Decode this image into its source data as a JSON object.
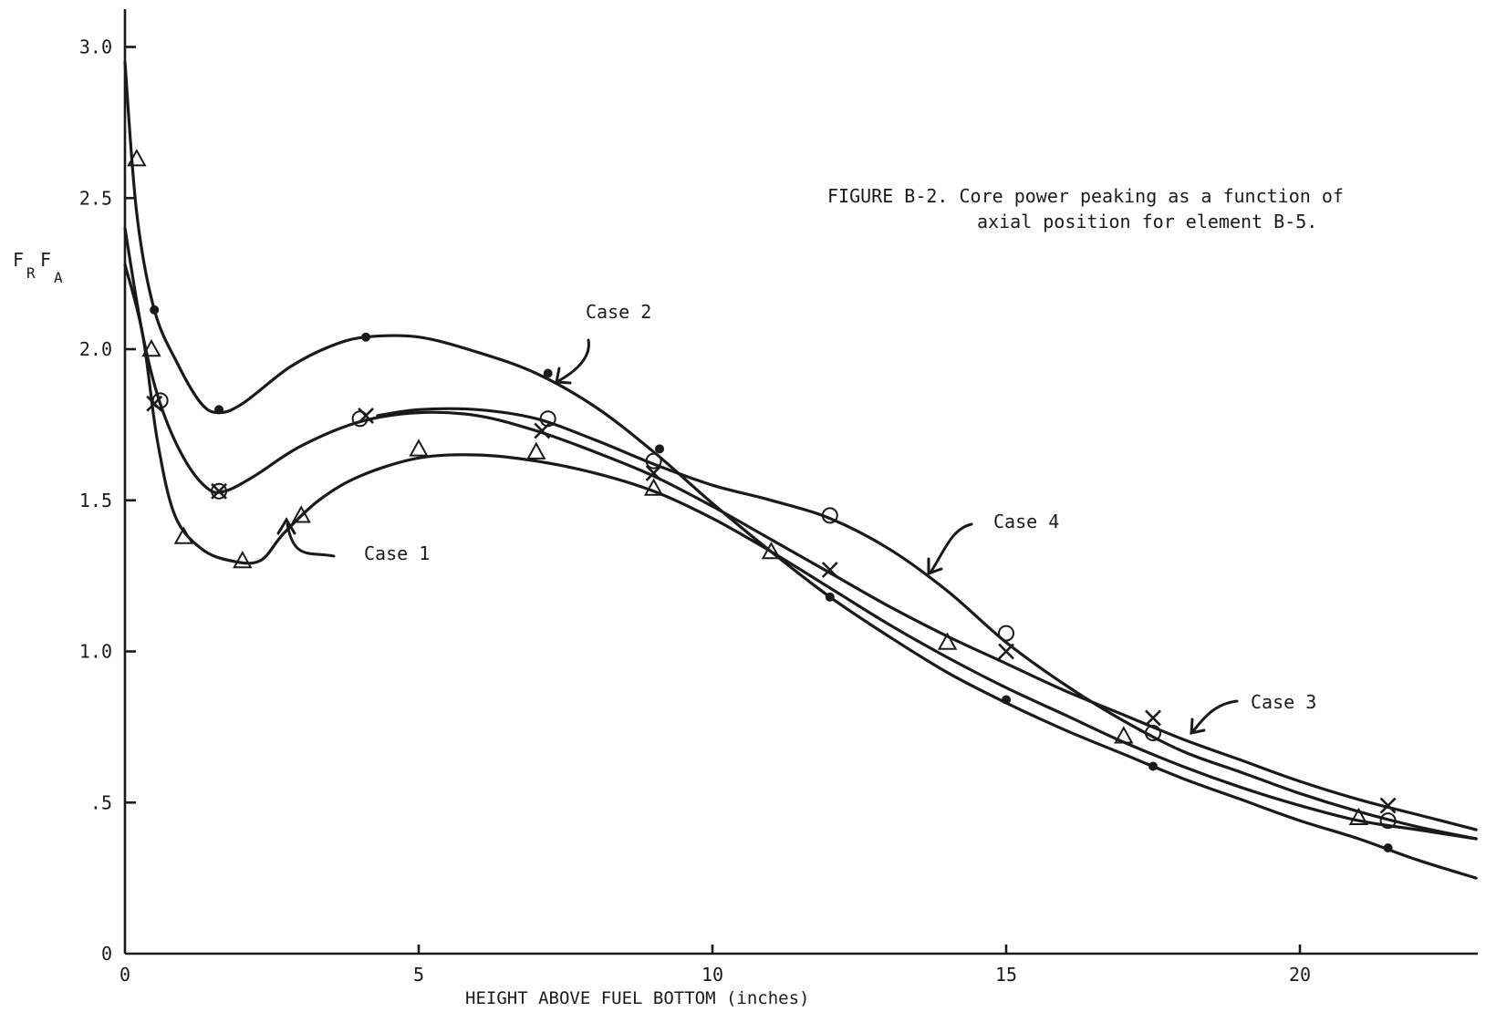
{
  "chart_data": {
    "type": "line",
    "title": "FIGURE B-2. Core power peaking as a function of",
    "title_line2": "axial position for element B-5.",
    "xlabel": "HEIGHT ABOVE FUEL BOTTOM (inches)",
    "ylabel": "FRFA",
    "ylabel_parts": [
      "F",
      "R",
      "F",
      "A"
    ],
    "xlim": [
      0,
      23
    ],
    "ylim": [
      0,
      3.1
    ],
    "x_ticks": [
      0,
      5,
      10,
      15,
      20
    ],
    "x_tick_labels": [
      "0",
      "5",
      "10",
      "15",
      "20"
    ],
    "y_ticks": [
      0,
      0.5,
      1.0,
      1.5,
      2.0,
      2.5,
      3.0
    ],
    "y_tick_labels": [
      "0",
      ".5",
      "1.0",
      "1.5",
      "2.0",
      "2.5",
      "3.0"
    ],
    "grid": false,
    "legend": "none",
    "series": [
      {
        "name": "Case 1",
        "marker": "triangle",
        "points": [
          [
            0.2,
            2.63
          ],
          [
            0.45,
            2.0
          ],
          [
            1.0,
            1.38
          ],
          [
            2.0,
            1.3
          ],
          [
            3.0,
            1.45
          ],
          [
            5.0,
            1.67
          ],
          [
            7.0,
            1.66
          ],
          [
            9.0,
            1.54
          ],
          [
            11.0,
            1.33
          ],
          [
            14.0,
            1.03
          ],
          [
            17.0,
            0.72
          ],
          [
            21.0,
            0.45
          ]
        ],
        "curve": [
          [
            0.0,
            2.28
          ],
          [
            0.3,
            2.05
          ],
          [
            0.55,
            1.7
          ],
          [
            0.85,
            1.45
          ],
          [
            1.3,
            1.34
          ],
          [
            1.8,
            1.3
          ],
          [
            2.3,
            1.3
          ],
          [
            2.7,
            1.39
          ],
          [
            3.3,
            1.5
          ],
          [
            4.0,
            1.58
          ],
          [
            5.0,
            1.64
          ],
          [
            6.0,
            1.65
          ],
          [
            7.0,
            1.63
          ],
          [
            8.0,
            1.59
          ],
          [
            9.0,
            1.53
          ],
          [
            10.0,
            1.44
          ],
          [
            11.0,
            1.33
          ],
          [
            12.0,
            1.21
          ],
          [
            13.0,
            1.09
          ],
          [
            14.0,
            0.98
          ],
          [
            15.0,
            0.88
          ],
          [
            16.0,
            0.79
          ],
          [
            17.0,
            0.7
          ],
          [
            18.0,
            0.62
          ],
          [
            19.0,
            0.55
          ],
          [
            20.0,
            0.49
          ],
          [
            21.0,
            0.44
          ],
          [
            22.0,
            0.41
          ],
          [
            23.0,
            0.38
          ]
        ]
      },
      {
        "name": "Case 2",
        "marker": "dot",
        "points": [
          [
            0.5,
            2.13
          ],
          [
            1.6,
            1.8
          ],
          [
            4.1,
            2.04
          ],
          [
            7.2,
            1.92
          ],
          [
            9.1,
            1.67
          ],
          [
            12.0,
            1.18
          ],
          [
            15.0,
            0.84
          ],
          [
            17.5,
            0.62
          ],
          [
            21.5,
            0.35
          ]
        ],
        "curve": [
          [
            0.0,
            2.95
          ],
          [
            0.2,
            2.45
          ],
          [
            0.5,
            2.13
          ],
          [
            0.9,
            1.95
          ],
          [
            1.3,
            1.82
          ],
          [
            1.6,
            1.79
          ],
          [
            2.0,
            1.82
          ],
          [
            2.8,
            1.94
          ],
          [
            3.5,
            2.01
          ],
          [
            4.1,
            2.04
          ],
          [
            5.0,
            2.04
          ],
          [
            6.0,
            1.99
          ],
          [
            7.0,
            1.92
          ],
          [
            8.0,
            1.81
          ],
          [
            9.0,
            1.66
          ],
          [
            10.0,
            1.49
          ],
          [
            11.0,
            1.33
          ],
          [
            12.0,
            1.18
          ],
          [
            13.0,
            1.05
          ],
          [
            14.0,
            0.93
          ],
          [
            15.0,
            0.83
          ],
          [
            16.0,
            0.74
          ],
          [
            17.0,
            0.66
          ],
          [
            18.0,
            0.58
          ],
          [
            19.0,
            0.51
          ],
          [
            20.0,
            0.44
          ],
          [
            21.0,
            0.38
          ],
          [
            22.0,
            0.31
          ],
          [
            23.0,
            0.25
          ]
        ]
      },
      {
        "name": "Case 3",
        "marker": "x",
        "points": [
          [
            0.5,
            1.82
          ],
          [
            1.6,
            1.53
          ],
          [
            4.1,
            1.78
          ],
          [
            7.1,
            1.73
          ],
          [
            9.0,
            1.59
          ],
          [
            12.0,
            1.27
          ],
          [
            15.0,
            1.0
          ],
          [
            17.5,
            0.78
          ],
          [
            21.5,
            0.49
          ]
        ],
        "curve": [
          [
            0.0,
            2.4
          ],
          [
            0.3,
            2.05
          ],
          [
            0.6,
            1.82
          ],
          [
            1.0,
            1.64
          ],
          [
            1.4,
            1.54
          ],
          [
            1.7,
            1.53
          ],
          [
            2.2,
            1.58
          ],
          [
            3.0,
            1.68
          ],
          [
            4.0,
            1.76
          ],
          [
            5.0,
            1.79
          ],
          [
            6.0,
            1.78
          ],
          [
            7.0,
            1.73
          ],
          [
            8.0,
            1.66
          ],
          [
            9.0,
            1.58
          ],
          [
            10.0,
            1.48
          ],
          [
            11.0,
            1.37
          ],
          [
            12.0,
            1.26
          ],
          [
            13.0,
            1.15
          ],
          [
            14.0,
            1.05
          ],
          [
            15.0,
            0.96
          ],
          [
            16.0,
            0.87
          ],
          [
            17.0,
            0.79
          ],
          [
            18.0,
            0.71
          ],
          [
            19.0,
            0.64
          ],
          [
            20.0,
            0.57
          ],
          [
            21.0,
            0.51
          ],
          [
            22.0,
            0.46
          ],
          [
            23.0,
            0.41
          ]
        ]
      },
      {
        "name": "Case 4",
        "marker": "circle",
        "points": [
          [
            0.6,
            1.83
          ],
          [
            1.6,
            1.53
          ],
          [
            4.0,
            1.77
          ],
          [
            7.2,
            1.77
          ],
          [
            9.0,
            1.63
          ],
          [
            12.0,
            1.45
          ],
          [
            15.0,
            1.06
          ],
          [
            17.5,
            0.73
          ],
          [
            21.5,
            0.44
          ]
        ],
        "curve": [
          [
            4.3,
            1.78
          ],
          [
            5.0,
            1.8
          ],
          [
            6.0,
            1.8
          ],
          [
            7.0,
            1.77
          ],
          [
            8.0,
            1.7
          ],
          [
            9.0,
            1.62
          ],
          [
            10.0,
            1.55
          ],
          [
            11.0,
            1.5
          ],
          [
            12.0,
            1.44
          ],
          [
            13.0,
            1.34
          ],
          [
            14.0,
            1.2
          ],
          [
            15.0,
            1.03
          ],
          [
            16.0,
            0.89
          ],
          [
            17.0,
            0.77
          ],
          [
            18.0,
            0.67
          ],
          [
            19.0,
            0.6
          ],
          [
            20.0,
            0.53
          ],
          [
            21.0,
            0.47
          ],
          [
            22.0,
            0.42
          ],
          [
            23.0,
            0.38
          ]
        ]
      }
    ],
    "annotations": [
      "Case 1",
      "Case 2",
      "Case 3",
      "Case 4"
    ]
  }
}
